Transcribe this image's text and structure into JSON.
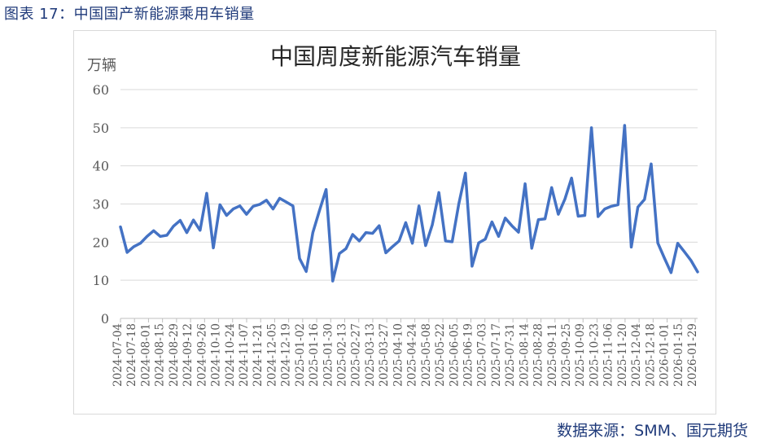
{
  "caption": "图表 17：中国国产新能源乘用车销量",
  "source": "数据来源：SMM、国元期货",
  "colors": {
    "line": "#4472c4",
    "caption": "#1f3a7a",
    "grid": "#d9d9d9",
    "axis_text": "#595959"
  },
  "chart_data": {
    "type": "line",
    "title": "中国周度新能源汽车销量",
    "ylabel": "万辆",
    "xlabel": "",
    "ylim": [
      0,
      60
    ],
    "yticks": [
      0,
      10,
      20,
      30,
      40,
      50,
      60
    ],
    "grid": true,
    "x_tick_labels": [
      "2024-07-04",
      "2024-07-18",
      "2024-08-01",
      "2024-08-15",
      "2024-08-29",
      "2024-09-12",
      "2024-09-26",
      "2024-10-10",
      "2024-10-24",
      "2024-11-07",
      "2024-11-21",
      "2024-12-05",
      "2024-12-19",
      "2025-01-02",
      "2025-01-16",
      "2025-01-30",
      "2025-02-13",
      "2025-02-27",
      "2025-03-13",
      "2025-03-27",
      "2025-04-10",
      "2025-04-24",
      "2025-05-08",
      "2025-05-22",
      "2025-06-05",
      "2025-06-19",
      "2025-07-03",
      "2025-07-17",
      "2025-07-31",
      "2025-08-14",
      "2025-08-28",
      "2025-09-11",
      "2025-09-25",
      "2025-10-09",
      "2025-10-23",
      "2025-11-06",
      "2025-11-20",
      "2025-12-04",
      "2025-12-18",
      "2026-01-01",
      "2026-01-15",
      "2026-01-29"
    ],
    "series": [
      {
        "name": "",
        "values": [
          24,
          17.3,
          18.8,
          19.7,
          21.5,
          23,
          21.5,
          21.8,
          24.2,
          25.7,
          22.5,
          25.8,
          23.1,
          32.8,
          18.5,
          29.8,
          27,
          28.7,
          29.5,
          27.3,
          29.4,
          29.9,
          31,
          28.7,
          31.5,
          30.5,
          29.5,
          15.7,
          12.3,
          22.5,
          28.3,
          33.8,
          9.8,
          17,
          18.3,
          22,
          20.3,
          22.5,
          22.3,
          24.3,
          17.2,
          18.8,
          20.3,
          25.1,
          19.7,
          29.5,
          19.1,
          24.5,
          33,
          20.3,
          20.1,
          30,
          38.1,
          13.7,
          19.8,
          20.8,
          25.3,
          21.5,
          26.3,
          24.3,
          22.6,
          35.3,
          18.4,
          25.9,
          26.1,
          34.3,
          27.3,
          31.3,
          36.8,
          26.8,
          27,
          50,
          26.7,
          28.7,
          29.4,
          29.8,
          50.6,
          18.7,
          29.2,
          31.2,
          40.5,
          19.8,
          15.8,
          12,
          19.7,
          17.5,
          15.2,
          12.2
        ]
      }
    ]
  }
}
